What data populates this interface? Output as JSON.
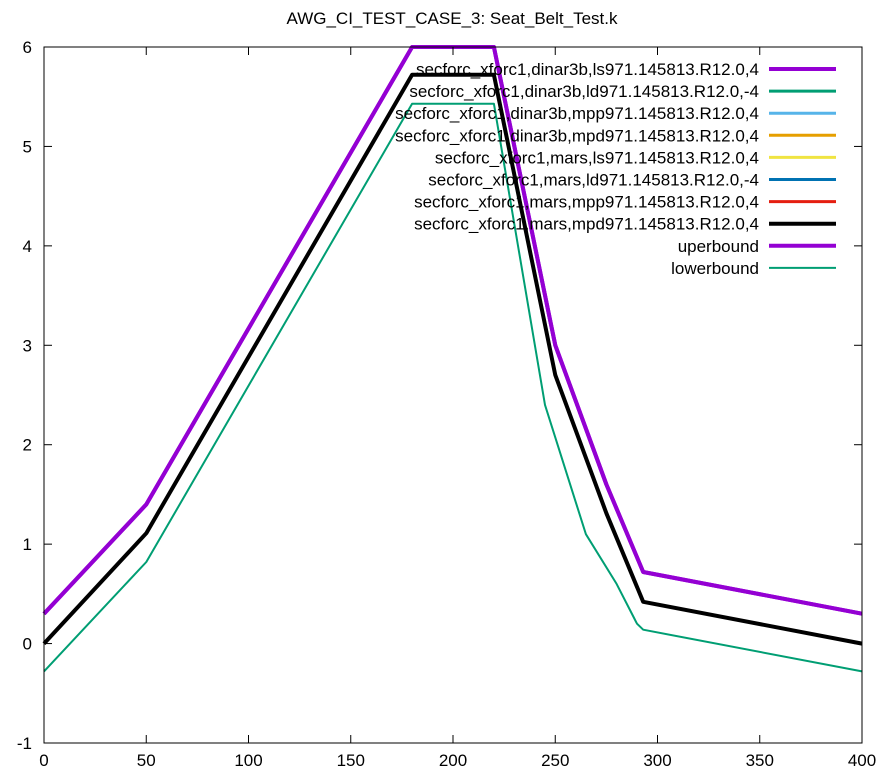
{
  "chart_data": {
    "type": "line",
    "title": "AWG_CI_TEST_CASE_3: Seat_Belt_Test.k",
    "xlabel": "",
    "ylabel": "",
    "xlim": [
      0,
      400
    ],
    "ylim": [
      -1,
      6
    ],
    "xticks": [
      "0",
      "50",
      "100",
      "150",
      "200",
      "250",
      "300",
      "350",
      "400"
    ],
    "yticks": [
      "-1",
      "0",
      "1",
      "2",
      "3",
      "4",
      "5",
      "6"
    ],
    "grid": false,
    "legend_position": "top-right",
    "series": [
      {
        "name": "secforc_xforc1,dinar3b,ls971.145813.R12.0,4",
        "color": "#9400d3",
        "x": [
          0,
          50,
          180,
          220,
          250,
          275,
          293,
          400
        ],
        "y": [
          0.3,
          1.4,
          6.0,
          6.0,
          3.0,
          1.6,
          0.72,
          0.3
        ]
      },
      {
        "name": "secforc_xforc1,dinar3b,ld971.145813.R12.0,-4",
        "color": "#009e73",
        "x": [
          0,
          50,
          180,
          220,
          250,
          275,
          293,
          400
        ],
        "y": [
          0.0,
          1.11,
          5.72,
          5.72,
          2.7,
          1.31,
          0.42,
          0.0
        ]
      },
      {
        "name": "secforc_xforc1,dinar3b,mpp971.145813.R12.0,4",
        "color": "#56b4e9",
        "x": [
          0,
          50,
          180,
          220,
          250,
          275,
          293,
          400
        ],
        "y": [
          0.0,
          1.11,
          5.72,
          5.72,
          2.7,
          1.31,
          0.42,
          0.0
        ]
      },
      {
        "name": "secforc_xforc1,dinar3b,mpd971.145813.R12.0,4",
        "color": "#e69f00",
        "x": [
          0,
          50,
          180,
          220,
          250,
          275,
          293,
          400
        ],
        "y": [
          0.0,
          1.11,
          5.72,
          5.72,
          2.7,
          1.31,
          0.42,
          0.0
        ]
      },
      {
        "name": "secforc_xforc1,mars,ls971.145813.R12.0,4",
        "color": "#f0e442",
        "x": [
          0,
          50,
          180,
          220,
          250,
          275,
          293,
          400
        ],
        "y": [
          0.0,
          1.11,
          5.72,
          5.72,
          2.7,
          1.31,
          0.42,
          0.0
        ]
      },
      {
        "name": "secforc_xforc1,mars,ld971.145813.R12.0,-4",
        "color": "#0072b2",
        "x": [
          0,
          50,
          180,
          220,
          250,
          275,
          293,
          400
        ],
        "y": [
          0.0,
          1.11,
          5.72,
          5.72,
          2.7,
          1.31,
          0.42,
          0.0
        ]
      },
      {
        "name": "secforc_xforc1,mars,mpp971.145813.R12.0,4",
        "color": "#e51e10",
        "x": [
          0,
          50,
          180,
          220,
          250,
          275,
          293,
          400
        ],
        "y": [
          0.0,
          1.11,
          5.72,
          5.72,
          2.7,
          1.31,
          0.42,
          0.0
        ]
      },
      {
        "name": "secforc_xforc1,mars,mpd971.145813.R12.0,4",
        "color": "#000000",
        "x": [
          0,
          50,
          180,
          220,
          250,
          275,
          293,
          400
        ],
        "y": [
          0.0,
          1.11,
          5.72,
          5.72,
          2.7,
          1.31,
          0.42,
          0.0
        ]
      },
      {
        "name": "uperbound",
        "color": "#9400d3",
        "x": [
          0,
          50,
          180,
          220,
          250,
          275,
          293,
          400
        ],
        "y": [
          0.3,
          1.4,
          6.0,
          6.0,
          3.0,
          1.6,
          0.72,
          0.3
        ]
      },
      {
        "name": "lowerbound",
        "color": "#009e73",
        "x": [
          0,
          50,
          180,
          220,
          245,
          265,
          280,
          290,
          293,
          400
        ],
        "y": [
          -0.28,
          0.82,
          5.43,
          5.43,
          2.4,
          1.1,
          0.6,
          0.2,
          0.14,
          -0.28
        ]
      }
    ]
  }
}
